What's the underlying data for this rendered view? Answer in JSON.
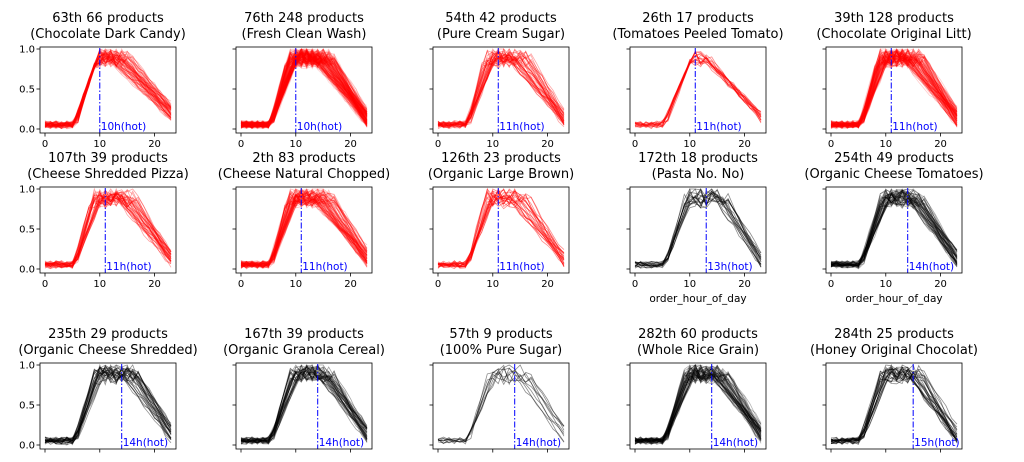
{
  "colors": {
    "hot": "#ff0000",
    "cold": "#000000",
    "marker": "#0000ff"
  },
  "chart_data": [
    {
      "type": "line",
      "title": "63th 66 products",
      "subtitle": "(Chocolate Dark Candy)",
      "series_count": 66,
      "color": "red",
      "peak_hour": 10,
      "peak_label": "10h(hot)",
      "xlabel": "",
      "ylabel": "",
      "xlim": [
        0,
        23
      ],
      "ylim": [
        0,
        1
      ],
      "xticks": [
        0,
        10,
        20
      ],
      "yticks": [
        "0.0",
        "0.5",
        "1.0"
      ],
      "profile": "tail_wide"
    },
    {
      "type": "line",
      "title": "76th 248 products",
      "subtitle": "(Fresh Clean Wash)",
      "series_count": 248,
      "color": "red",
      "peak_hour": 10,
      "peak_label": "10h(hot)",
      "xlabel": "",
      "ylabel": "",
      "xlim": [
        0,
        23
      ],
      "ylim": [
        0,
        1
      ],
      "xticks": [
        0,
        10,
        20
      ],
      "yticks": [
        "0.0",
        "0.5",
        "1.0"
      ],
      "profile": "plateau_wide"
    },
    {
      "type": "line",
      "title": "54th 42 products",
      "subtitle": "(Pure Cream Sugar)",
      "series_count": 42,
      "color": "red",
      "peak_hour": 11,
      "peak_label": "11h(hot)",
      "xlabel": "",
      "ylabel": "",
      "xlim": [
        0,
        23
      ],
      "ylim": [
        0,
        1
      ],
      "xticks": [
        0,
        10,
        20
      ],
      "yticks": [
        "0.0",
        "0.5",
        "1.0"
      ],
      "profile": "plateau_wide"
    },
    {
      "type": "line",
      "title": "26th 17 products",
      "subtitle": "(Tomatoes Peeled Tomato)",
      "series_count": 17,
      "color": "red",
      "peak_hour": 11,
      "peak_label": "11h(hot)",
      "xlabel": "",
      "ylabel": "",
      "xlim": [
        0,
        23
      ],
      "ylim": [
        0,
        1
      ],
      "xticks": [
        0,
        10,
        20
      ],
      "yticks": [
        "0.0",
        "0.5",
        "1.0"
      ],
      "profile": "peak_sharp"
    },
    {
      "type": "line",
      "title": "39th 128 products",
      "subtitle": "(Chocolate Original Litt)",
      "series_count": 128,
      "color": "red",
      "peak_hour": 11,
      "peak_label": "11h(hot)",
      "xlabel": "",
      "ylabel": "",
      "xlim": [
        0,
        23
      ],
      "ylim": [
        0,
        1
      ],
      "xticks": [
        0,
        10,
        20
      ],
      "yticks": [
        "0.0",
        "0.5",
        "1.0"
      ],
      "profile": "plateau_wide"
    },
    {
      "type": "line",
      "title": "107th 39 products",
      "subtitle": "(Cheese Shredded Pizza)",
      "series_count": 39,
      "color": "red",
      "peak_hour": 11,
      "peak_label": "11h(hot)",
      "xlabel": "",
      "ylabel": "",
      "xlim": [
        0,
        23
      ],
      "ylim": [
        0,
        1
      ],
      "xticks": [
        0,
        10,
        20
      ],
      "yticks": [
        "0.0",
        "0.5",
        "1.0"
      ],
      "profile": "plateau_wide"
    },
    {
      "type": "line",
      "title": "2th 83 products",
      "subtitle": "(Cheese Natural Chopped)",
      "series_count": 83,
      "color": "red",
      "peak_hour": 11,
      "peak_label": "11h(hot)",
      "xlabel": "",
      "ylabel": "",
      "xlim": [
        0,
        23
      ],
      "ylim": [
        0,
        1
      ],
      "xticks": [
        0,
        10,
        20
      ],
      "yticks": [
        "0.0",
        "0.5",
        "1.0"
      ],
      "profile": "plateau_wide"
    },
    {
      "type": "line",
      "title": "126th 23 products",
      "subtitle": "(Organic Large Brown)",
      "series_count": 23,
      "color": "red",
      "peak_hour": 11,
      "peak_label": "11h(hot)",
      "xlabel": "",
      "ylabel": "",
      "xlim": [
        0,
        23
      ],
      "ylim": [
        0,
        1
      ],
      "xticks": [
        0,
        10,
        20
      ],
      "yticks": [
        "0.0",
        "0.5",
        "1.0"
      ],
      "profile": "plateau_wide"
    },
    {
      "type": "line",
      "title": "172th 18 products",
      "subtitle": "(Pasta No. No)",
      "series_count": 18,
      "color": "black",
      "peak_hour": 13,
      "peak_label": "13h(hot)",
      "xlabel": "order_hour_of_day",
      "ylabel": "",
      "xlim": [
        0,
        23
      ],
      "ylim": [
        0,
        1
      ],
      "xticks": [
        0,
        10,
        20
      ],
      "yticks": [
        "0.0",
        "0.5",
        "1.0"
      ],
      "profile": "plateau_mid"
    },
    {
      "type": "line",
      "title": "254th 49 products",
      "subtitle": "(Organic Cheese Tomatoes)",
      "series_count": 49,
      "color": "black",
      "peak_hour": 14,
      "peak_label": "14h(hot)",
      "xlabel": "order_hour_of_day",
      "ylabel": "",
      "xlim": [
        0,
        23
      ],
      "ylim": [
        0,
        1
      ],
      "xticks": [
        0,
        10,
        20
      ],
      "yticks": [
        "0.0",
        "0.5",
        "1.0"
      ],
      "profile": "plateau_late"
    },
    {
      "type": "line",
      "title": "235th 29 products",
      "subtitle": "(Organic Cheese Shredded)",
      "series_count": 29,
      "color": "black",
      "peak_hour": 14,
      "peak_label": "14h(hot)",
      "xlabel": "",
      "ylabel": "",
      "xlim": [
        0,
        23
      ],
      "ylim": [
        0,
        1
      ],
      "xticks": [],
      "yticks": [
        "0.0",
        "0.5",
        "1.0"
      ],
      "profile": "plateau_late"
    },
    {
      "type": "line",
      "title": "167th 39 products",
      "subtitle": "(Organic Granola Cereal)",
      "series_count": 39,
      "color": "black",
      "peak_hour": 14,
      "peak_label": "14h(hot)",
      "xlabel": "",
      "ylabel": "",
      "xlim": [
        0,
        23
      ],
      "ylim": [
        0,
        1
      ],
      "xticks": [],
      "yticks": [
        "0.0",
        "0.5",
        "1.0"
      ],
      "profile": "plateau_late"
    },
    {
      "type": "line",
      "title": "57th 9 products",
      "subtitle": "(100% Pure Sugar)",
      "series_count": 9,
      "color": "black",
      "peak_hour": 14,
      "peak_label": "14h(hot)",
      "xlabel": "",
      "ylabel": "",
      "xlim": [
        0,
        23
      ],
      "ylim": [
        0,
        1
      ],
      "xticks": [],
      "yticks": [
        "0.0",
        "0.5",
        "1.0"
      ],
      "profile": "plateau_late"
    },
    {
      "type": "line",
      "title": "282th 60 products",
      "subtitle": "(Whole Rice Grain)",
      "series_count": 60,
      "color": "black",
      "peak_hour": 14,
      "peak_label": "14h(hot)",
      "xlabel": "",
      "ylabel": "",
      "xlim": [
        0,
        23
      ],
      "ylim": [
        0,
        1
      ],
      "xticks": [],
      "yticks": [
        "0.0",
        "0.5",
        "1.0"
      ],
      "profile": "plateau_late"
    },
    {
      "type": "line",
      "title": "284th 25 products",
      "subtitle": "(Honey Original Chocolat)",
      "series_count": 25,
      "color": "black",
      "peak_hour": 15,
      "peak_label": "15h(hot)",
      "xlabel": "",
      "ylabel": "",
      "xlim": [
        0,
        23
      ],
      "ylim": [
        0,
        1
      ],
      "xticks": [],
      "yticks": [
        "0.0",
        "0.5",
        "1.0"
      ],
      "profile": "plateau_late"
    }
  ]
}
